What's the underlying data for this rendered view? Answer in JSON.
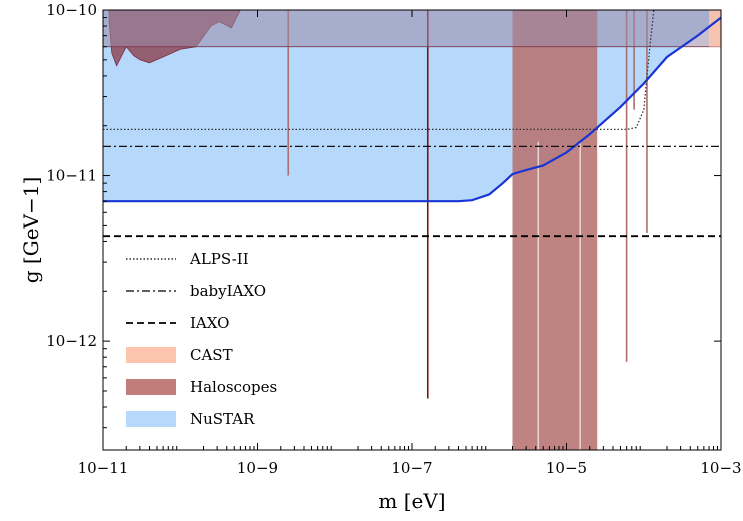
{
  "chart_data": {
    "type": "area",
    "x_axis": {
      "label": "m [eV]",
      "scale": "log",
      "range": [
        1e-11,
        0.001
      ],
      "ticks": [
        {
          "value": 1e-11,
          "label": "10−11"
        },
        {
          "value": 1e-09,
          "label": "10−9"
        },
        {
          "value": 1e-07,
          "label": "10−7"
        },
        {
          "value": 1e-05,
          "label": "10−5"
        },
        {
          "value": 0.001,
          "label": "10−3"
        }
      ]
    },
    "y_axis": {
      "label": "g [GeV−1]",
      "scale": "log",
      "range": [
        2.2e-13,
        1e-10
      ],
      "ticks": [
        {
          "value": 1e-12,
          "label": "10−12"
        },
        {
          "value": 1e-11,
          "label": "10−11"
        },
        {
          "value": 1e-10,
          "label": "10−10"
        }
      ]
    },
    "grid": false,
    "legend_position": "lower-left",
    "legend": [
      {
        "label": "ALPS-II",
        "kind": "line",
        "style": "dotted"
      },
      {
        "label": "babyIAXO",
        "kind": "line",
        "style": "dashdot"
      },
      {
        "label": "IAXO",
        "kind": "line",
        "style": "dashed"
      },
      {
        "label": "CAST",
        "kind": "fill",
        "color": "#fcc4ac"
      },
      {
        "label": "Haloscopes",
        "kind": "fill",
        "color": "#c17d7a"
      },
      {
        "label": "NuSTAR",
        "kind": "fill",
        "color": "#b6d8fb"
      }
    ],
    "series": {
      "ALPS-II": {
        "color": "#333333",
        "points": [
          [
            1e-11,
            1.9e-11
          ],
          [
            6e-05,
            1.9e-11
          ],
          [
            8e-05,
            1.95e-11
          ],
          [
            0.0001,
            2.5e-11
          ],
          [
            0.00012,
            6e-11
          ],
          [
            0.000135,
            1e-10
          ]
        ]
      },
      "babyIAXO": {
        "color": "#111111",
        "points": [
          [
            1e-11,
            1.5e-11
          ],
          [
            0.001,
            1.5e-11
          ]
        ]
      },
      "IAXO": {
        "color": "#000000",
        "points": [
          [
            1e-11,
            4.3e-12
          ],
          [
            0.001,
            4.3e-12
          ]
        ]
      },
      "CAST": {
        "color": "#fcc4ac",
        "limit": 6e-11,
        "range": [
          1e-11,
          0.001
        ]
      },
      "NuSTAR": {
        "color": "#b6d8fb",
        "edge_color": "#1a35d6",
        "points": [
          [
            1e-11,
            7e-12
          ],
          [
            1e-07,
            7e-12
          ],
          [
            4e-07,
            7e-12
          ],
          [
            6e-07,
            7.1e-12
          ],
          [
            1e-06,
            7.7e-12
          ],
          [
            1.5e-06,
            9e-12
          ],
          [
            2e-06,
            1.02e-11
          ],
          [
            3e-06,
            1.08e-11
          ],
          [
            5e-06,
            1.15e-11
          ],
          [
            1e-05,
            1.38e-11
          ],
          [
            2e-05,
            1.78e-11
          ],
          [
            5e-05,
            2.6e-11
          ],
          [
            0.0001,
            3.6e-11
          ],
          [
            0.0002,
            5.2e-11
          ],
          [
            0.0005,
            7e-11
          ],
          [
            0.0008,
            8.3e-11
          ],
          [
            0.001,
            9e-11
          ]
        ]
      },
      "Haloscopes": {
        "color": "#b87674",
        "top_region": [
          [
            1.2e-11,
            8.5e-11
          ],
          [
            1.3e-11,
            5.5e-11
          ],
          [
            1.5e-11,
            4.6e-11
          ],
          [
            2e-11,
            6e-11
          ],
          [
            2.5e-11,
            5.3e-11
          ],
          [
            3e-11,
            5e-11
          ],
          [
            4e-11,
            4.8e-11
          ],
          [
            6e-11,
            5.2e-11
          ],
          [
            1e-10,
            5.8e-11
          ],
          [
            1.6e-10,
            6e-11
          ],
          [
            2.5e-10,
            8e-11
          ],
          [
            3.2e-10,
            8.5e-11
          ],
          [
            4.6e-10,
            7.8e-11
          ],
          [
            6e-10,
            1e-10
          ]
        ],
        "band_range": [
          2e-06,
          2.5e-05
        ],
        "band_bottom": 2.2e-13,
        "spikes": [
          {
            "m": 2.5e-09,
            "g_min": 1e-11
          },
          {
            "m": 1.6e-07,
            "g_min": 4.5e-13
          },
          {
            "m": 6e-05,
            "g_min": 7.5e-13
          },
          {
            "m": 7.5e-05,
            "g_min": 2.5e-11
          },
          {
            "m": 0.00011,
            "g_min": 4.5e-12
          }
        ]
      }
    }
  }
}
